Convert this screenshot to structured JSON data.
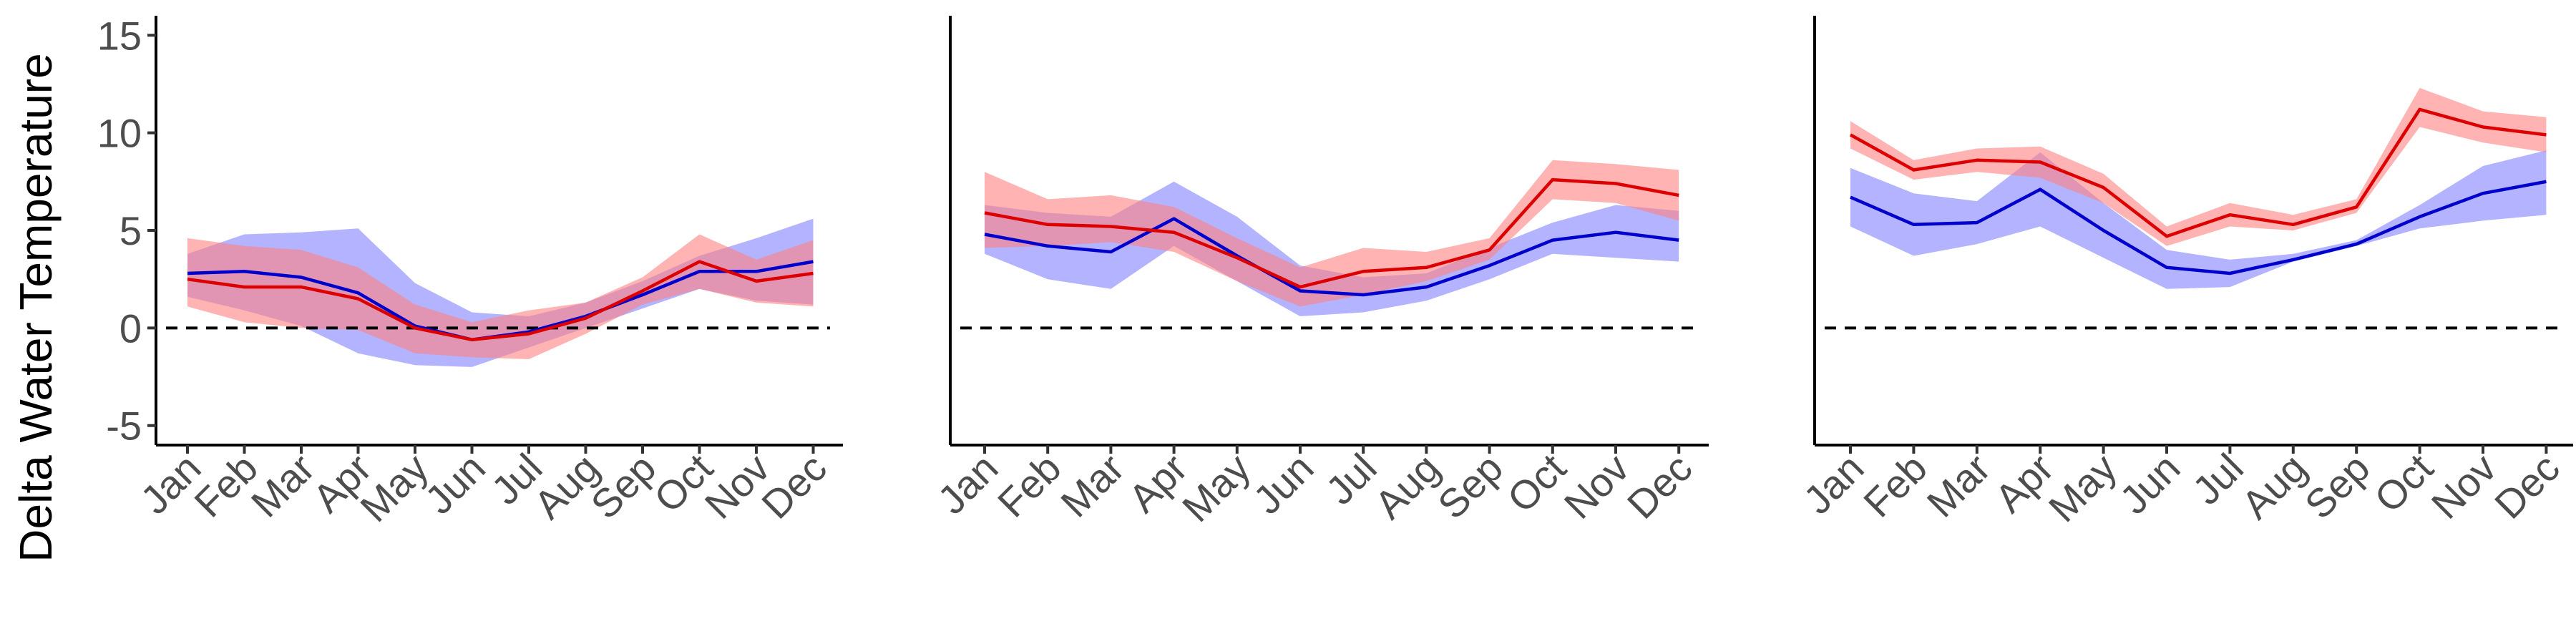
{
  "chart_data": [
    {
      "type": "line",
      "ylabel": "Delta Water Temperature",
      "ylim": [
        -6,
        16
      ],
      "yticks": [
        -5,
        0,
        5,
        10,
        15
      ],
      "categories": [
        "Jan",
        "Feb",
        "Mar",
        "Apr",
        "May",
        "Jun",
        "Jul",
        "Aug",
        "Sep",
        "Oct",
        "Nov",
        "Dec"
      ],
      "reference_line": 0,
      "series": [
        {
          "color": "#0000cc",
          "band_color": "#8080ff",
          "values": [
            2.8,
            2.9,
            2.6,
            1.8,
            0.1,
            -0.6,
            -0.2,
            0.6,
            1.7,
            2.9,
            2.9,
            3.4
          ],
          "lower": [
            1.6,
            0.9,
            0.1,
            -1.3,
            -1.9,
            -2.0,
            -1.0,
            0.0,
            1.0,
            2.0,
            1.4,
            1.2
          ],
          "upper": [
            3.8,
            4.8,
            4.9,
            5.1,
            2.3,
            0.8,
            0.6,
            1.3,
            2.4,
            3.7,
            4.6,
            5.6
          ]
        },
        {
          "color": "#dd0000",
          "band_color": "#ff8080",
          "values": [
            2.5,
            2.1,
            2.1,
            1.5,
            0.0,
            -0.6,
            -0.3,
            0.5,
            1.9,
            3.4,
            2.4,
            2.8
          ],
          "lower": [
            1.1,
            0.3,
            0.0,
            -0.1,
            -1.3,
            -1.5,
            -1.6,
            -0.3,
            1.2,
            2.0,
            1.3,
            1.1
          ],
          "upper": [
            4.6,
            4.2,
            4.0,
            3.1,
            1.2,
            0.3,
            0.9,
            1.3,
            2.6,
            4.8,
            3.5,
            4.5
          ]
        }
      ]
    },
    {
      "type": "line",
      "ylim": [
        -6,
        16
      ],
      "categories": [
        "Jan",
        "Feb",
        "Mar",
        "Apr",
        "May",
        "Jun",
        "Jul",
        "Aug",
        "Sep",
        "Oct",
        "Nov",
        "Dec"
      ],
      "reference_line": 0,
      "series": [
        {
          "color": "#0000cc",
          "band_color": "#8080ff",
          "values": [
            4.8,
            4.2,
            3.9,
            5.6,
            3.7,
            1.9,
            1.7,
            2.1,
            3.2,
            4.5,
            4.9,
            4.5
          ],
          "lower": [
            3.8,
            2.5,
            2.0,
            4.2,
            2.4,
            0.6,
            0.8,
            1.4,
            2.5,
            3.8,
            3.6,
            3.4
          ],
          "upper": [
            6.3,
            5.9,
            5.7,
            7.5,
            5.7,
            3.2,
            2.6,
            2.8,
            4.1,
            5.4,
            6.3,
            6.0
          ]
        },
        {
          "color": "#dd0000",
          "band_color": "#ff8080",
          "values": [
            5.9,
            5.3,
            5.2,
            4.9,
            3.6,
            2.1,
            2.9,
            3.1,
            4.0,
            7.6,
            7.4,
            6.8
          ],
          "lower": [
            4.1,
            4.2,
            4.4,
            3.9,
            2.4,
            1.1,
            1.7,
            2.4,
            3.5,
            6.6,
            6.4,
            5.5
          ],
          "upper": [
            8.0,
            6.6,
            6.8,
            6.2,
            4.6,
            3.1,
            4.1,
            3.9,
            4.6,
            8.6,
            8.4,
            8.1
          ]
        }
      ]
    },
    {
      "type": "line",
      "ylim": [
        -6,
        16
      ],
      "categories": [
        "Jan",
        "Feb",
        "Mar",
        "Apr",
        "May",
        "Jun",
        "Jul",
        "Aug",
        "Sep",
        "Oct",
        "Nov",
        "Dec"
      ],
      "reference_line": 0,
      "series": [
        {
          "color": "#0000cc",
          "band_color": "#8080ff",
          "values": [
            6.7,
            5.3,
            5.4,
            7.1,
            5.0,
            3.1,
            2.8,
            3.5,
            4.3,
            5.7,
            6.9,
            7.5
          ],
          "lower": [
            5.2,
            3.7,
            4.3,
            5.2,
            3.6,
            2.0,
            2.1,
            3.4,
            4.2,
            5.1,
            5.5,
            5.8
          ],
          "upper": [
            8.2,
            6.9,
            6.5,
            9.0,
            6.4,
            4.0,
            3.5,
            3.8,
            4.5,
            6.3,
            8.3,
            9.1
          ]
        },
        {
          "color": "#dd0000",
          "band_color": "#ff8080",
          "values": [
            9.9,
            8.1,
            8.6,
            8.5,
            7.2,
            4.7,
            5.8,
            5.3,
            6.2,
            11.2,
            10.3,
            9.9
          ],
          "lower": [
            9.2,
            7.6,
            8.0,
            7.7,
            6.4,
            4.2,
            5.2,
            5.0,
            5.9,
            10.3,
            9.5,
            9.0
          ],
          "upper": [
            10.6,
            8.6,
            9.2,
            9.3,
            7.9,
            5.2,
            6.4,
            5.8,
            6.6,
            12.3,
            11.1,
            10.8
          ]
        }
      ]
    }
  ]
}
